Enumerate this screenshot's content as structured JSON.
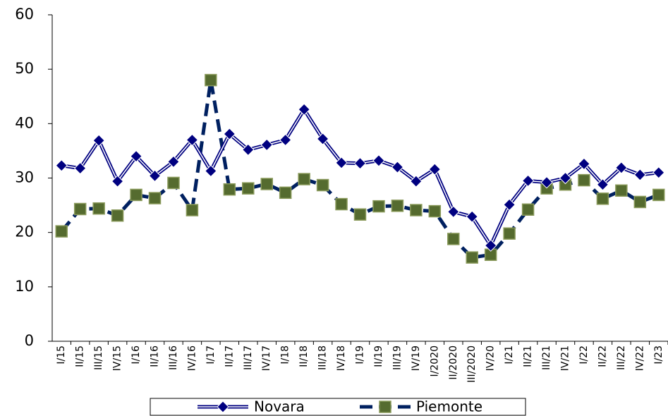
{
  "chart_data": {
    "type": "line",
    "categories": [
      "I/15",
      "II/15",
      "III/15",
      "IV/15",
      "I/16",
      "II/16",
      "III/16",
      "IV/16",
      "I/17",
      "II/17",
      "III/17",
      "IV/17",
      "I/18",
      "II/18",
      "III/18",
      "IV/18",
      "I/19",
      "II/19",
      "III/19",
      "IV/19",
      "I/2020",
      "II/2020",
      "III/2020",
      "IV/20",
      "I/21",
      "II/21",
      "III/21",
      "IV/21",
      "I/22",
      "II/22",
      "III/22",
      "IV/22",
      "I/23"
    ],
    "series": [
      {
        "name": "Novara",
        "color": "#000080",
        "marker": "diamond",
        "dashed": false,
        "values": [
          32.3,
          31.8,
          36.9,
          29.4,
          34,
          30.4,
          33,
          37,
          31.3,
          38.1,
          35.2,
          36.1,
          37,
          42.6,
          37.2,
          32.8,
          32.7,
          33.2,
          32,
          29.4,
          31.6,
          23.8,
          22.9,
          17.6,
          25.1,
          29.5,
          29.2,
          30,
          32.6,
          28.8,
          31.9,
          30.6,
          31
        ]
      },
      {
        "name": "Piemonte",
        "color": "#002060",
        "marker": "square",
        "marker_color": "#556b2f",
        "dashed": true,
        "values": [
          20.2,
          24.3,
          24.4,
          23.1,
          26.9,
          26.3,
          29.1,
          24.1,
          48,
          27.9,
          28.1,
          28.9,
          27.3,
          29.8,
          28.7,
          25.2,
          23.3,
          24.8,
          24.9,
          24.1,
          23.9,
          18.8,
          15.4,
          15.9,
          19.8,
          24.2,
          28.1,
          28.8,
          29.6,
          26.2,
          27.7,
          25.6,
          26.9
        ]
      }
    ],
    "ylim": [
      0,
      60
    ],
    "yticks": [
      0,
      10,
      20,
      30,
      40,
      50,
      60
    ],
    "grid": false
  }
}
